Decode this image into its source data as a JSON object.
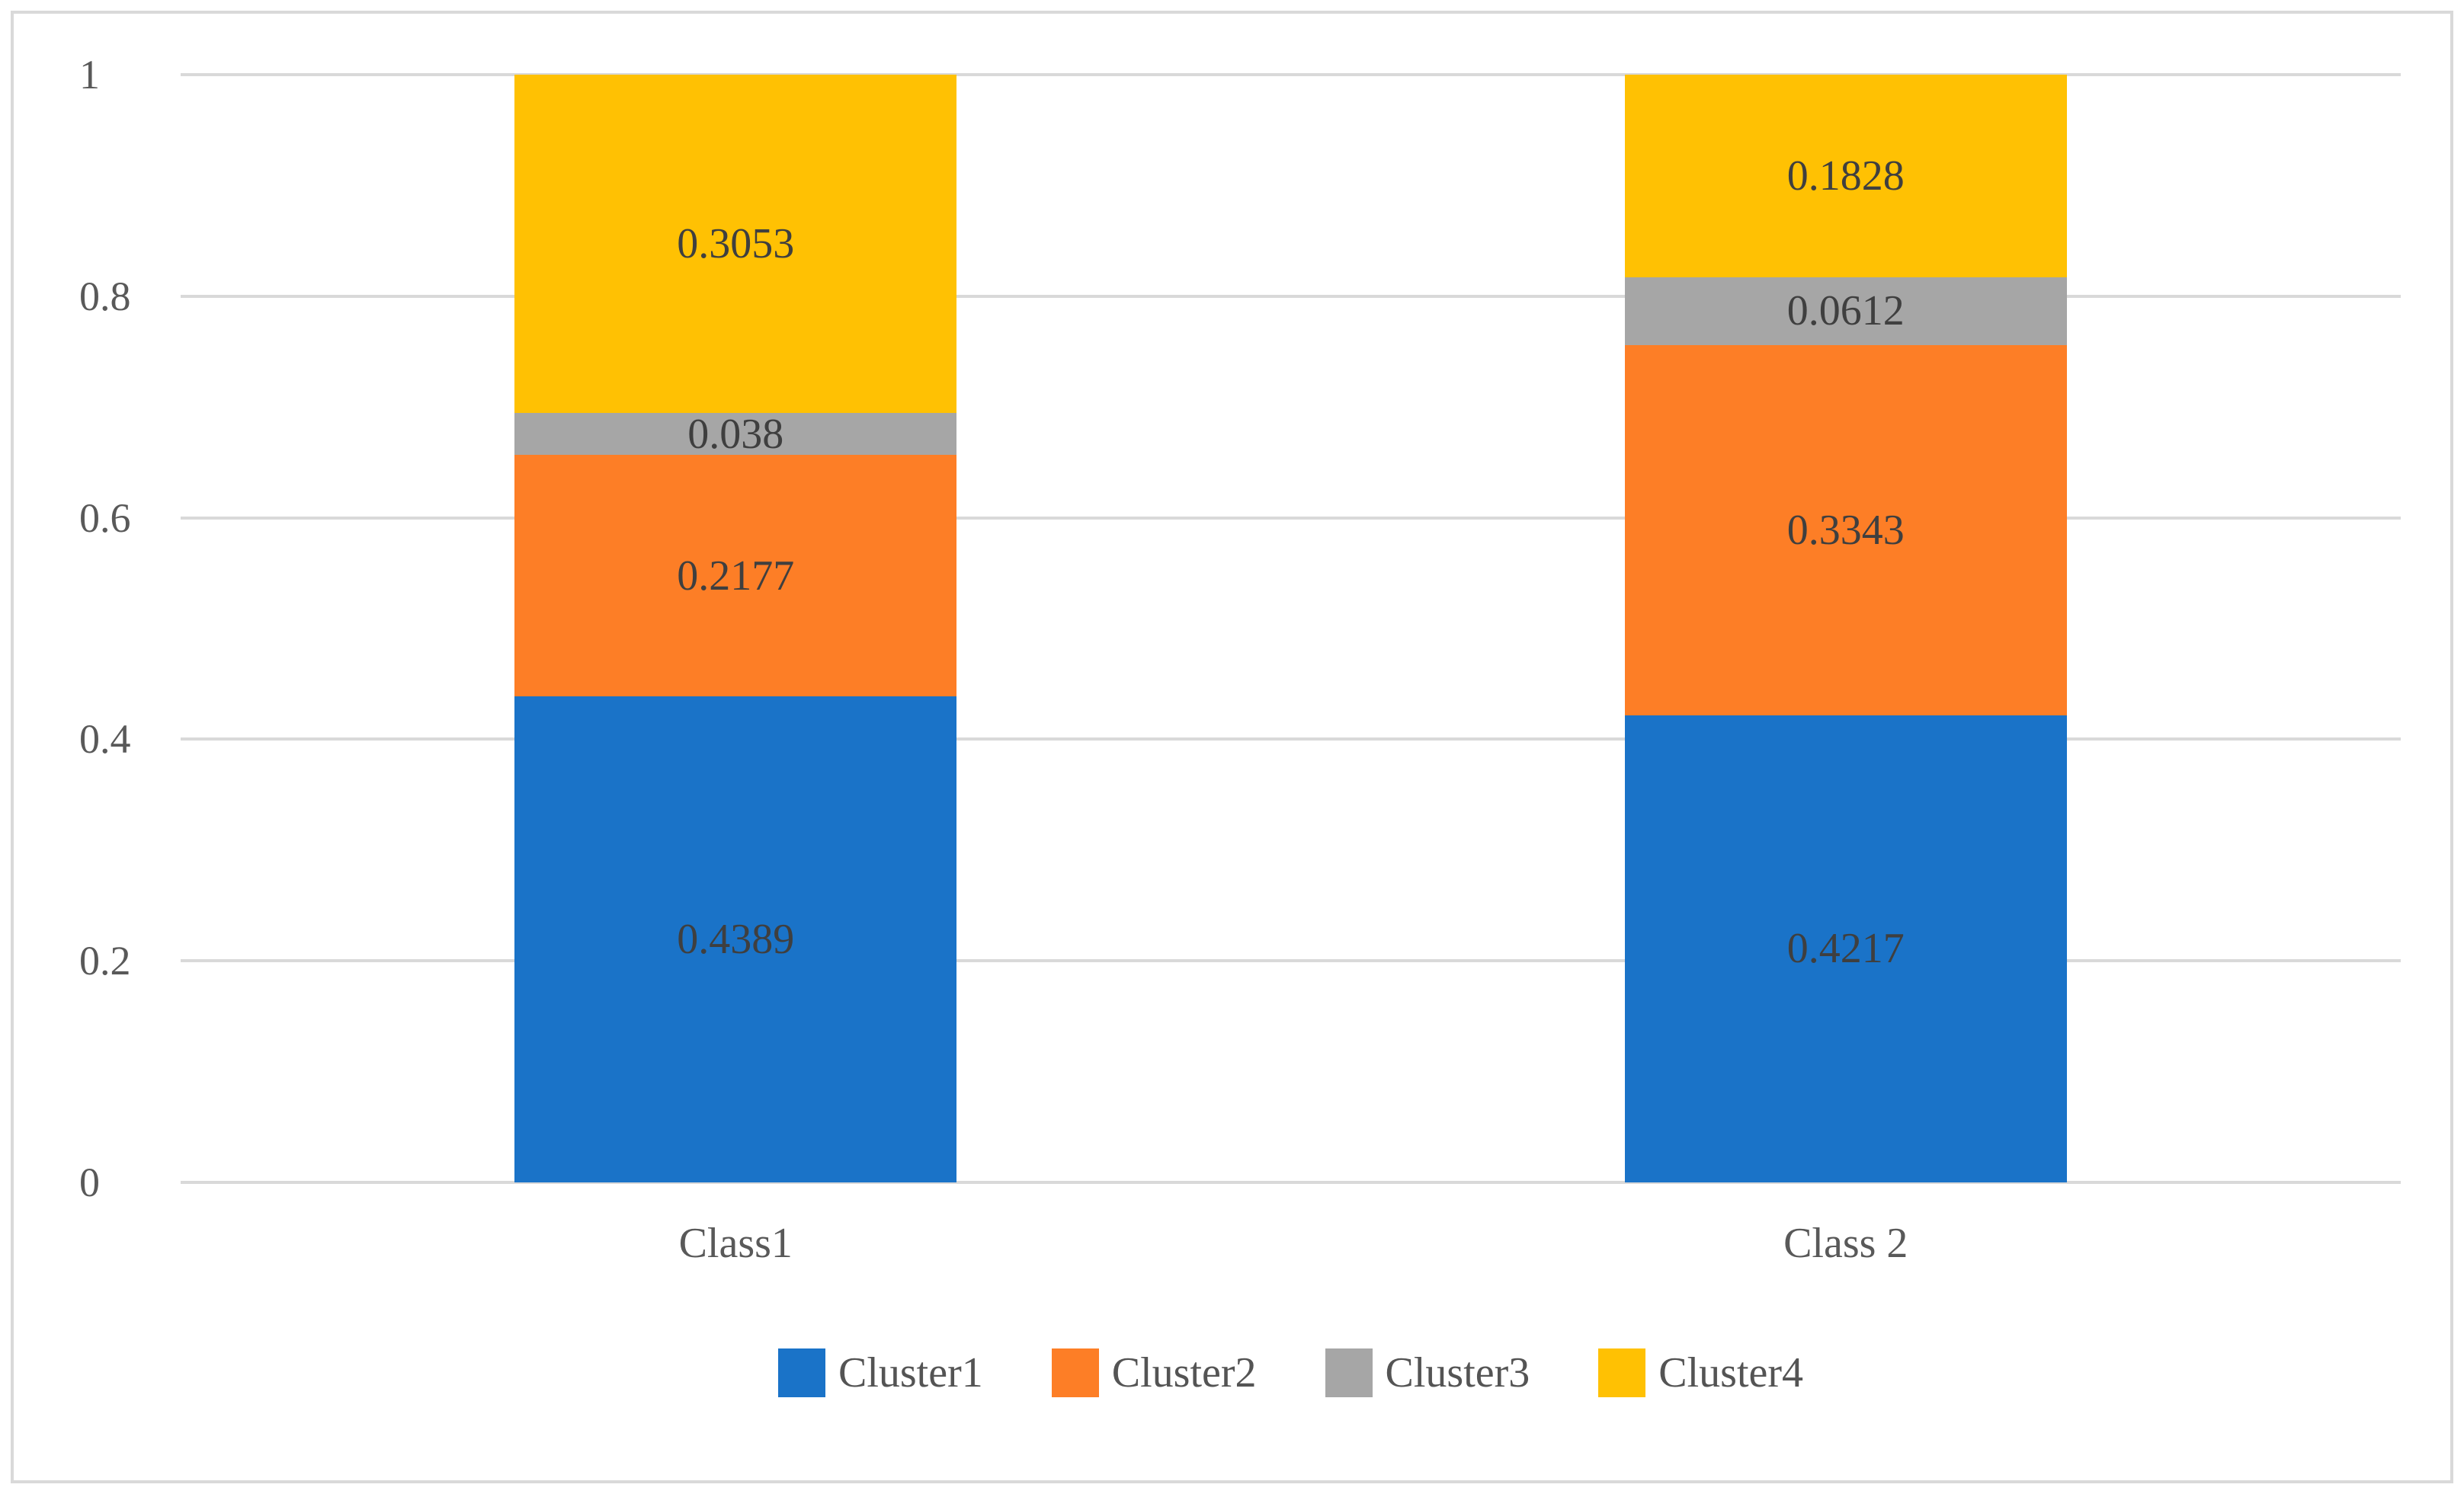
{
  "figure": {
    "background_color": "#ffffff",
    "border_color": "#d9d9d9"
  },
  "chart_data": {
    "type": "bar",
    "stacked": true,
    "title": "",
    "xlabel": "",
    "ylabel": "",
    "categories": [
      "Class1",
      "Class 2"
    ],
    "series": [
      {
        "name": "Cluster1",
        "color": "#1a73c8",
        "values": [
          0.4389,
          0.4217
        ],
        "labels": [
          "0.4389",
          "0.4217"
        ]
      },
      {
        "name": "Cluster2",
        "color": "#fd7e26",
        "values": [
          0.2177,
          0.3343
        ],
        "labels": [
          "0.2177",
          "0.3343"
        ]
      },
      {
        "name": "Cluster3",
        "color": "#a6a6a6",
        "values": [
          0.038,
          0.0612
        ],
        "labels": [
          "0.038",
          "0.0612"
        ]
      },
      {
        "name": "Cluster4",
        "color": "#ffc103",
        "values": [
          0.3053,
          0.1828
        ],
        "labels": [
          "0.3053",
          "0.1828"
        ]
      }
    ],
    "y_axis": {
      "min": 0,
      "max": 1,
      "ticks": [
        {
          "value": 0,
          "label": "0"
        },
        {
          "value": 0.2,
          "label": "0.2"
        },
        {
          "value": 0.4,
          "label": "0.4"
        },
        {
          "value": 0.6,
          "label": "0.6"
        },
        {
          "value": 0.8,
          "label": "0.8"
        },
        {
          "value": 1,
          "label": "1"
        }
      ]
    },
    "grid": true,
    "gridline_color": "#d9d9d9",
    "axis_text_color": "#595959",
    "data_label_color": "#3f3f3f",
    "legend": {
      "position": "bottom",
      "entries": [
        "Cluster1",
        "Cluster2",
        "Cluster3",
        "Cluster4"
      ]
    }
  }
}
